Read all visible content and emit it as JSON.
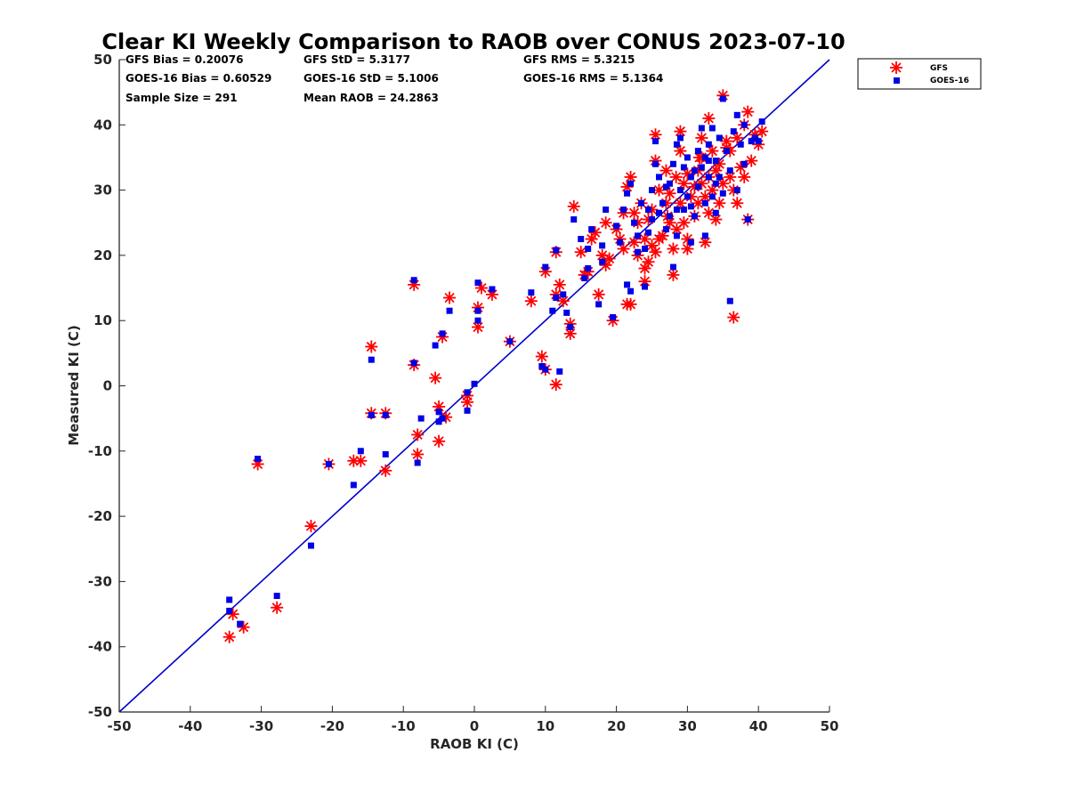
{
  "chart_data": {
    "type": "scatter",
    "title": "Clear KI Weekly Comparison to RAOB over CONUS 2023-07-10",
    "xlabel": "RAOB KI (C)",
    "ylabel": "Measured KI (C)",
    "xlim": [
      -50,
      50
    ],
    "ylim": [
      -50,
      50
    ],
    "xticks": [
      "-50",
      "-40",
      "-30",
      "-20",
      "-10",
      "0",
      "10",
      "20",
      "30",
      "40",
      "50"
    ],
    "yticks": [
      "-50",
      "-40",
      "-30",
      "-20",
      "-10",
      "0",
      "10",
      "20",
      "30",
      "40",
      "50"
    ],
    "grid": false,
    "reference_line": {
      "label": "1:1",
      "x": [
        -50,
        50
      ],
      "y": [
        -50,
        50
      ],
      "color": "#0000cc"
    },
    "stats": {
      "gfs_bias": "GFS Bias = 0.20076",
      "gfs_std": "GFS StD = 5.3177",
      "gfs_rms": "GFS RMS = 5.3215",
      "goes_bias": "GOES-16 Bias = 0.60529",
      "goes_std": "GOES-16 StD = 5.1006",
      "goes_rms": "GOES-16 RMS = 5.1364",
      "sample_size": "Sample Size = 291",
      "mean_raob": "Mean RAOB = 24.2863"
    },
    "legend": {
      "position": "top-right, outside plot"
    },
    "series": [
      {
        "name": "GFS",
        "marker": "asterisk",
        "color": "#ff0000",
        "points": [
          [
            -34.5,
            -38.5
          ],
          [
            -34,
            -35
          ],
          [
            -32.5,
            -37
          ],
          [
            -27.8,
            -34
          ],
          [
            -23,
            -21.5
          ],
          [
            -30.5,
            -12
          ],
          [
            -20.5,
            -12
          ],
          [
            -17,
            -11.5
          ],
          [
            -16,
            -11.5
          ],
          [
            -12.5,
            -13
          ],
          [
            -14.5,
            -4.2
          ],
          [
            -12.5,
            -4.2
          ],
          [
            -14.5,
            6
          ],
          [
            -8.5,
            15.5
          ],
          [
            -8.5,
            3.2
          ],
          [
            -8,
            -7.5
          ],
          [
            -8,
            -10.5
          ],
          [
            -5.5,
            1.2
          ],
          [
            -5,
            -3.2
          ],
          [
            -5,
            -8.5
          ],
          [
            -4.5,
            7.5
          ],
          [
            -4,
            -4.8
          ],
          [
            -3.5,
            13.5
          ],
          [
            -1,
            -1.5
          ],
          [
            -1,
            -2.5
          ],
          [
            0.5,
            9
          ],
          [
            0.5,
            12
          ],
          [
            1,
            15
          ],
          [
            2.5,
            14
          ],
          [
            5,
            6.8
          ],
          [
            8,
            13
          ],
          [
            9.5,
            4.5
          ],
          [
            10,
            17.5
          ],
          [
            10,
            2.5
          ],
          [
            11.5,
            20.5
          ],
          [
            11.5,
            14
          ],
          [
            11.5,
            0.2
          ],
          [
            12,
            15.5
          ],
          [
            12.5,
            13
          ],
          [
            13.5,
            9.5
          ],
          [
            13.5,
            8
          ],
          [
            14,
            27.5
          ],
          [
            15,
            20.5
          ],
          [
            15.5,
            17
          ],
          [
            16,
            17.5
          ],
          [
            16.5,
            22.5
          ],
          [
            17,
            23.5
          ],
          [
            17.5,
            14
          ],
          [
            18,
            20
          ],
          [
            18.5,
            25
          ],
          [
            18.5,
            18.5
          ],
          [
            19,
            19.5
          ],
          [
            19.5,
            10
          ],
          [
            20,
            24
          ],
          [
            20.5,
            22.5
          ],
          [
            21,
            26.5
          ],
          [
            21,
            21
          ],
          [
            21.5,
            30.5
          ],
          [
            21.5,
            12.5
          ],
          [
            22,
            32
          ],
          [
            22,
            12.5
          ],
          [
            22.5,
            26.5
          ],
          [
            22.5,
            22
          ],
          [
            23,
            25
          ],
          [
            23,
            20
          ],
          [
            23.5,
            28
          ],
          [
            24,
            22.5
          ],
          [
            24,
            18
          ],
          [
            24,
            16
          ],
          [
            24.5,
            25.5
          ],
          [
            24.5,
            19
          ],
          [
            25,
            27
          ],
          [
            25,
            21.5
          ],
          [
            25.5,
            34.5
          ],
          [
            25.5,
            38.5
          ],
          [
            25.5,
            20.5
          ],
          [
            26,
            30
          ],
          [
            26,
            22.5
          ],
          [
            26.5,
            23
          ],
          [
            27,
            33
          ],
          [
            27,
            28
          ],
          [
            27.5,
            29.5
          ],
          [
            27.5,
            25
          ],
          [
            28,
            17
          ],
          [
            28,
            21
          ],
          [
            28.5,
            24
          ],
          [
            29,
            39
          ],
          [
            29,
            36
          ],
          [
            29,
            28
          ],
          [
            29.5,
            31
          ],
          [
            29.5,
            25
          ],
          [
            30,
            32.5
          ],
          [
            30,
            22.5
          ],
          [
            30,
            21
          ],
          [
            30.5,
            29
          ],
          [
            31,
            26
          ],
          [
            31,
            30.5
          ],
          [
            31.5,
            33
          ],
          [
            31.5,
            28
          ],
          [
            32,
            35
          ],
          [
            32,
            38
          ],
          [
            32,
            31
          ],
          [
            32.5,
            29
          ],
          [
            32.5,
            22
          ],
          [
            33,
            41
          ],
          [
            33,
            32
          ],
          [
            33,
            26.5
          ],
          [
            33.5,
            36
          ],
          [
            33.5,
            30
          ],
          [
            34,
            25.5
          ],
          [
            34,
            33
          ],
          [
            34.5,
            34
          ],
          [
            34.5,
            28
          ],
          [
            35,
            44.5
          ],
          [
            35,
            31
          ],
          [
            35.5,
            37.5
          ],
          [
            36,
            36
          ],
          [
            36,
            32
          ],
          [
            36.5,
            10.5
          ],
          [
            36.5,
            30
          ],
          [
            37,
            38
          ],
          [
            37,
            28
          ],
          [
            37.5,
            33.5
          ],
          [
            38,
            32
          ],
          [
            38,
            40
          ],
          [
            38.5,
            42
          ],
          [
            38.5,
            25.5
          ],
          [
            39,
            34.5
          ],
          [
            39.5,
            38.5
          ],
          [
            40,
            37
          ],
          [
            40.5,
            39
          ],
          [
            35.5,
            36.5
          ],
          [
            27.2,
            26
          ],
          [
            31.7,
            35
          ],
          [
            28.4,
            32
          ]
        ]
      },
      {
        "name": "GOES-16",
        "marker": "square",
        "color": "#0000e6",
        "points": [
          [
            -34.5,
            -34.5
          ],
          [
            -34.5,
            -32.8
          ],
          [
            -33,
            -36.5
          ],
          [
            -27.8,
            -32.2
          ],
          [
            -23,
            -24.5
          ],
          [
            -30.5,
            -11.2
          ],
          [
            -20.5,
            -12
          ],
          [
            -17,
            -15.2
          ],
          [
            -16,
            -10
          ],
          [
            -12.5,
            -10.5
          ],
          [
            -14.5,
            4
          ],
          [
            -14.5,
            -4.5
          ],
          [
            -12.5,
            -4.5
          ],
          [
            -8.5,
            16.2
          ],
          [
            -8.5,
            3.5
          ],
          [
            -8,
            -11.8
          ],
          [
            -7.5,
            -5
          ],
          [
            -5.5,
            6.2
          ],
          [
            -5,
            -4
          ],
          [
            -5,
            -5.5
          ],
          [
            -4.5,
            8
          ],
          [
            -4.5,
            -5
          ],
          [
            -3.5,
            11.5
          ],
          [
            -1,
            -1
          ],
          [
            -1,
            -3.8
          ],
          [
            0,
            0.3
          ],
          [
            0.5,
            11.5
          ],
          [
            0.5,
            10
          ],
          [
            0.5,
            15.8
          ],
          [
            2.5,
            14.8
          ],
          [
            5,
            6.8
          ],
          [
            8,
            14.3
          ],
          [
            9.5,
            3
          ],
          [
            10,
            18.2
          ],
          [
            10,
            2.5
          ],
          [
            11,
            11.5
          ],
          [
            11.5,
            20.8
          ],
          [
            11.5,
            13.5
          ],
          [
            12,
            2.2
          ],
          [
            12.5,
            14
          ],
          [
            13,
            11.2
          ],
          [
            13.5,
            9
          ],
          [
            14,
            25.5
          ],
          [
            15,
            22.5
          ],
          [
            15.5,
            16.5
          ],
          [
            16,
            18
          ],
          [
            16,
            21
          ],
          [
            16.5,
            24
          ],
          [
            17.5,
            12.5
          ],
          [
            18,
            21.5
          ],
          [
            18,
            19
          ],
          [
            18.5,
            27
          ],
          [
            19.5,
            10.5
          ],
          [
            20,
            24.5
          ],
          [
            20.5,
            22
          ],
          [
            21,
            27
          ],
          [
            21.5,
            15.5
          ],
          [
            21.5,
            29.5
          ],
          [
            22,
            31
          ],
          [
            22,
            14.5
          ],
          [
            22.5,
            25
          ],
          [
            23,
            23
          ],
          [
            23,
            20.5
          ],
          [
            23.5,
            28
          ],
          [
            24,
            15.2
          ],
          [
            24,
            21
          ],
          [
            24.5,
            27
          ],
          [
            24.5,
            23.5
          ],
          [
            25,
            30
          ],
          [
            25,
            25.5
          ],
          [
            25.5,
            37.5
          ],
          [
            25.5,
            34
          ],
          [
            26,
            32
          ],
          [
            26,
            26.5
          ],
          [
            26.5,
            28
          ],
          [
            27,
            30.5
          ],
          [
            27,
            24
          ],
          [
            27.5,
            31
          ],
          [
            27.5,
            26
          ],
          [
            28,
            18.2
          ],
          [
            28,
            34
          ],
          [
            28.5,
            37
          ],
          [
            28.5,
            23
          ],
          [
            29,
            38
          ],
          [
            29,
            30
          ],
          [
            29.5,
            33.5
          ],
          [
            29.5,
            27
          ],
          [
            30,
            35
          ],
          [
            30,
            29
          ],
          [
            30.5,
            27.5
          ],
          [
            30.5,
            22
          ],
          [
            31,
            33
          ],
          [
            31,
            26
          ],
          [
            31.5,
            36
          ],
          [
            31.5,
            30.5
          ],
          [
            32,
            39.5
          ],
          [
            32,
            33.5
          ],
          [
            32.5,
            28
          ],
          [
            32.5,
            23
          ],
          [
            33,
            37
          ],
          [
            33,
            32
          ],
          [
            33.5,
            39.5
          ],
          [
            33.5,
            29
          ],
          [
            34,
            34.5
          ],
          [
            34,
            26.5
          ],
          [
            34.5,
            38
          ],
          [
            34.5,
            32
          ],
          [
            35,
            44
          ],
          [
            35,
            29.5
          ],
          [
            35.5,
            36
          ],
          [
            36,
            13
          ],
          [
            36,
            33
          ],
          [
            36.5,
            39
          ],
          [
            37,
            41.5
          ],
          [
            37,
            30
          ],
          [
            37.5,
            37
          ],
          [
            38,
            34
          ],
          [
            38,
            40
          ],
          [
            38.5,
            25.5
          ],
          [
            39,
            37.5
          ],
          [
            39.5,
            38
          ],
          [
            40,
            37.5
          ],
          [
            40.5,
            40.5
          ],
          [
            30.5,
            32
          ],
          [
            32.5,
            35
          ],
          [
            34,
            31
          ],
          [
            28.5,
            27
          ],
          [
            33,
            34.5
          ]
        ]
      }
    ]
  }
}
